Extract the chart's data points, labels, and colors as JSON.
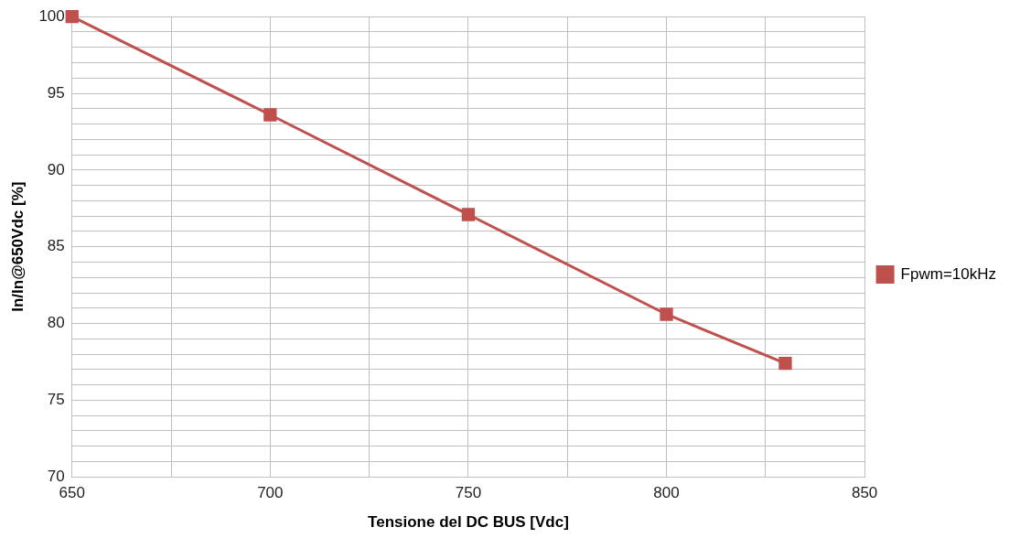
{
  "chart_data": {
    "type": "line",
    "xlabel": "Tensione del DC BUS [Vdc]",
    "ylabel": "In/In@650Vdc [%]",
    "x": [
      650,
      700,
      750,
      800,
      830
    ],
    "series": [
      {
        "name": "Fpwm=10kHz",
        "color": "#c0504d",
        "values": [
          100,
          93.6,
          87.1,
          80.6,
          77.4
        ]
      }
    ],
    "xlim": [
      650,
      850
    ],
    "xticks": [
      650,
      {
        "value": 675,
        "label": null
      },
      700,
      {
        "value": 725,
        "label": null
      },
      750,
      {
        "value": 775,
        "label": null
      },
      800,
      {
        "value": 825,
        "label": null
      },
      850
    ],
    "ylim": [
      70,
      100
    ],
    "yticks": [
      70,
      {
        "value": 71,
        "label": null
      },
      {
        "value": 72,
        "label": null
      },
      {
        "value": 73,
        "label": null
      },
      {
        "value": 74,
        "label": null
      },
      75,
      {
        "value": 76,
        "label": null
      },
      {
        "value": 77,
        "label": null
      },
      {
        "value": 78,
        "label": null
      },
      {
        "value": 79,
        "label": null
      },
      80,
      {
        "value": 81,
        "label": null
      },
      {
        "value": 82,
        "label": null
      },
      {
        "value": 83,
        "label": null
      },
      {
        "value": 84,
        "label": null
      },
      85,
      {
        "value": 86,
        "label": null
      },
      {
        "value": 87,
        "label": null
      },
      {
        "value": 88,
        "label": null
      },
      {
        "value": 89,
        "label": null
      },
      90,
      {
        "value": 91,
        "label": null
      },
      {
        "value": 92,
        "label": null
      },
      {
        "value": 93,
        "label": null
      },
      {
        "value": 94,
        "label": null
      },
      95,
      {
        "value": 96,
        "label": null
      },
      {
        "value": 97,
        "label": null
      },
      {
        "value": 98,
        "label": null
      },
      {
        "value": 99,
        "label": null
      },
      100
    ],
    "grid": true,
    "legend": "right",
    "marker": "square",
    "line_style": "solid"
  }
}
